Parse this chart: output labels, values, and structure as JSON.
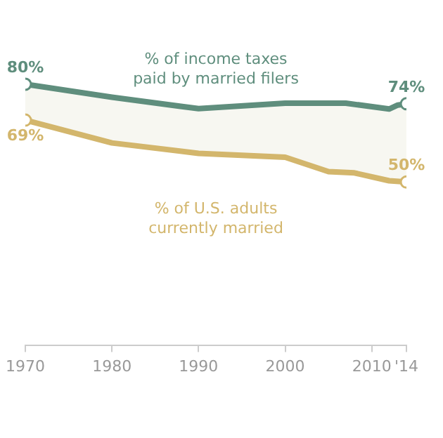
{
  "chart_data": {
    "type": "line",
    "x": [
      1970,
      1980,
      1990,
      2000,
      2007,
      2012,
      2013,
      2014
    ],
    "series": [
      {
        "name": "% of income taxes paid by married filers",
        "color": "#5f8e7d",
        "marker": "none",
        "values": [
          80,
          76,
          72.5,
          74.2,
          74.2,
          72.4,
          73.6,
          74
        ]
      },
      {
        "name": "% of U.S. adults currently married",
        "color": "#d3b66c",
        "marker": "none",
        "x": [
          1970,
          1980,
          1990,
          2000,
          2005,
          2008,
          2012,
          2014
        ],
        "values": [
          69,
          62,
          58.8,
          57.6,
          53.2,
          52.8,
          50.4,
          50
        ]
      },
      {
        "type": "scatter",
        "color": "#5f8e7d",
        "x": [
          1970,
          2014
        ],
        "values": [
          80,
          74
        ],
        "value_labels": [
          "80%",
          "74%"
        ]
      },
      {
        "type": "scatter",
        "color": "#d3b66c",
        "x": [
          1970,
          2014
        ],
        "values": [
          69,
          50
        ],
        "value_labels": [
          "69%",
          "50%"
        ]
      }
    ],
    "xlim": [
      1970,
      2014
    ],
    "xticks": [
      1970,
      1980,
      1990,
      2000,
      2010,
      {
        "value": 2014,
        "label": "'14"
      }
    ],
    "tick_labels": "x",
    "grid": false,
    "legend": false,
    "marker": "circle",
    "line_style": "solid"
  }
}
